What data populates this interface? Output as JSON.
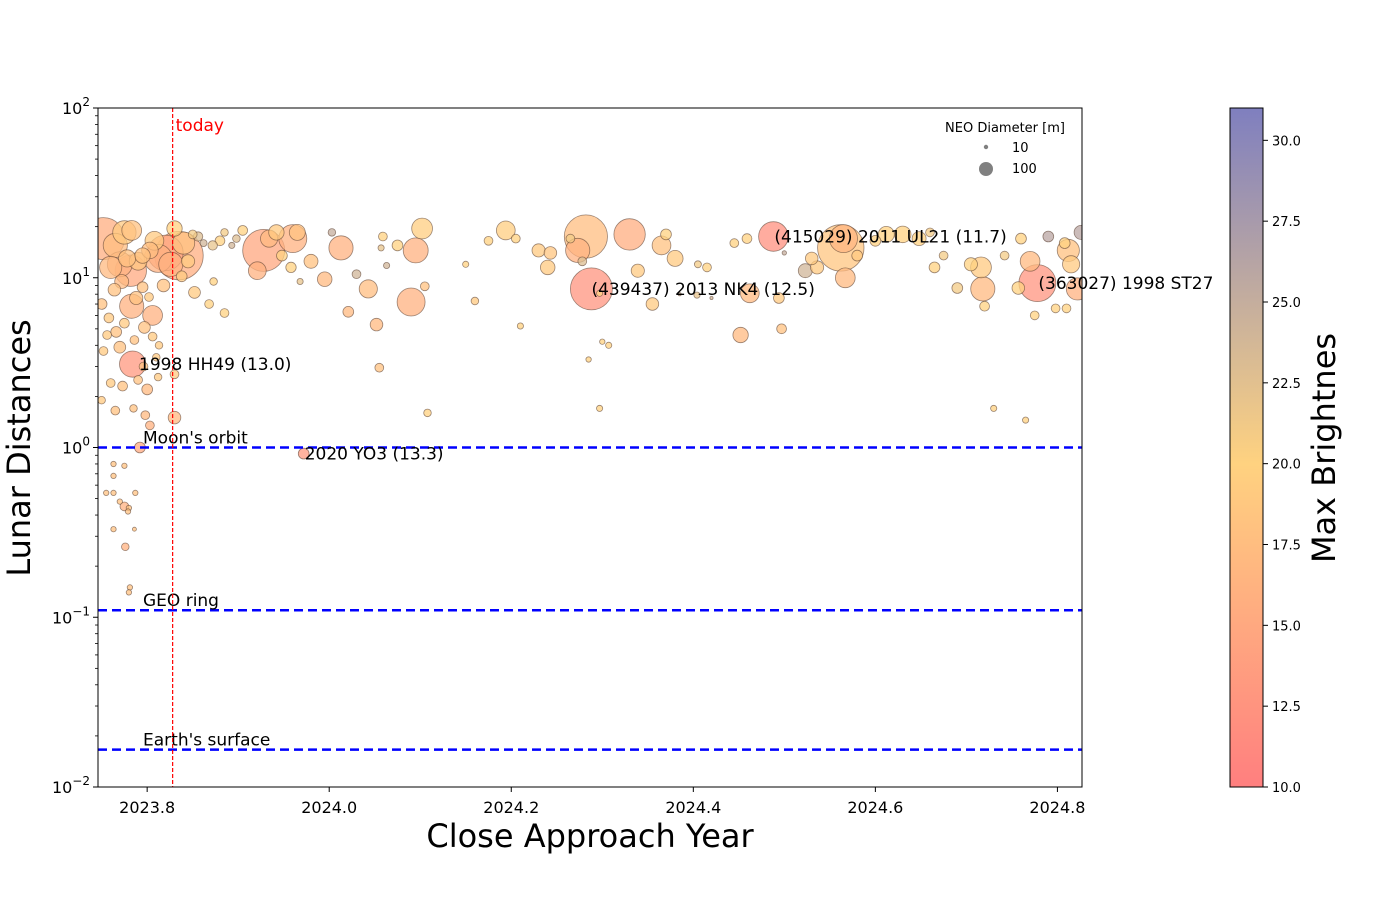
{
  "chart_data": {
    "type": "scatter",
    "xlabel": "Close Approach Year",
    "ylabel": "Lunar Distances",
    "xlim": [
      2023.746,
      2024.827
    ],
    "ylim": [
      0.01,
      100
    ],
    "yscale": "log",
    "x_ticks": [
      2023.8,
      2024.0,
      2024.2,
      2024.4,
      2024.6,
      2024.8
    ],
    "x_tick_labels": [
      "2023.8",
      "2024.0",
      "2024.2",
      "2024.4",
      "2024.6",
      "2024.8"
    ],
    "y_ticks": [
      0.01,
      0.1,
      1,
      10,
      100
    ],
    "y_tick_labels": [
      {
        "base": "10",
        "exp": "−2"
      },
      {
        "base": "10",
        "exp": "−1"
      },
      {
        "base": "10",
        "exp": "0"
      },
      {
        "base": "10",
        "exp": "1"
      },
      {
        "base": "10",
        "exp": "2"
      }
    ],
    "today": {
      "x": 2023.828,
      "label": "today",
      "color": "#ff0000"
    },
    "reference_lines": [
      {
        "y": 1.0,
        "label": "Moon's orbit",
        "color": "#0000ff"
      },
      {
        "y": 0.11,
        "label": "GEO ring",
        "color": "#0000ff"
      },
      {
        "y": 0.0166,
        "label": "Earth's surface",
        "color": "#0000ff"
      }
    ],
    "annotations": [
      {
        "x": 2023.79,
        "y": 3.1,
        "text": "1998 HH49 (13.0)"
      },
      {
        "x": 2023.972,
        "y": 0.92,
        "text": "2020 YO3 (13.3)"
      },
      {
        "x": 2024.287,
        "y": 8.6,
        "text": "(439437) 2013 NK4 (12.5)"
      },
      {
        "x": 2024.488,
        "y": 17.5,
        "text": "(415029) 2011 UL21 (11.7)"
      },
      {
        "x": 2024.778,
        "y": 9.3,
        "text": "(363027) 1998 ST27"
      }
    ],
    "legend": {
      "title": "NEO Diameter [m]",
      "entries": [
        {
          "size": 10,
          "label": "10"
        },
        {
          "size": 100,
          "label": "100"
        }
      ],
      "placement": "top-right"
    },
    "colorbar": {
      "label": "Max Brightnes",
      "range": [
        10.0,
        31.0
      ],
      "ticks": [
        "10.0",
        "12.5",
        "15.0",
        "17.5",
        "20.0",
        "22.5",
        "25.0",
        "27.5",
        "30.0"
      ],
      "tick_values": [
        10.0,
        12.5,
        15.0,
        17.5,
        20.0,
        22.5,
        25.0,
        27.5,
        30.0
      ],
      "colors": [
        "#ff7f7f",
        "#ffd280",
        "#7f7fbf"
      ]
    },
    "point_fields": [
      "year",
      "lunar_distance",
      "diameter_m",
      "max_brightness"
    ],
    "points": [
      [
        2023.752,
        17.0,
        900,
        15.5
      ],
      [
        2023.765,
        15.5,
        300,
        17.5
      ],
      [
        2023.775,
        18.5,
        280,
        19
      ],
      [
        2023.783,
        19.0,
        200,
        18
      ],
      [
        2023.77,
        12.0,
        320,
        16
      ],
      [
        2023.778,
        13.0,
        150,
        18
      ],
      [
        2023.76,
        11.5,
        250,
        17
      ],
      [
        2023.79,
        12.5,
        160,
        18.5
      ],
      [
        2023.782,
        11.0,
        500,
        15
      ],
      [
        2023.795,
        13.5,
        120,
        18
      ],
      [
        2023.803,
        14.5,
        140,
        17.5
      ],
      [
        2023.808,
        16.5,
        180,
        19
      ],
      [
        2023.812,
        13.0,
        400,
        16
      ],
      [
        2023.82,
        14.0,
        650,
        14.5
      ],
      [
        2023.826,
        12.0,
        300,
        16
      ],
      [
        2023.835,
        13.5,
        1200,
        15.5
      ],
      [
        2023.84,
        16.0,
        250,
        18
      ],
      [
        2023.83,
        19.5,
        120,
        20
      ],
      [
        2023.845,
        12.5,
        90,
        19
      ],
      [
        2023.85,
        18.0,
        40,
        21
      ],
      [
        2023.856,
        17.5,
        45,
        23
      ],
      [
        2023.862,
        16.0,
        25,
        24
      ],
      [
        2023.872,
        15.5,
        45,
        22
      ],
      [
        2023.88,
        16.5,
        50,
        20
      ],
      [
        2023.885,
        18.5,
        30,
        21
      ],
      [
        2023.893,
        15.5,
        20,
        24
      ],
      [
        2023.898,
        17.0,
        30,
        23
      ],
      [
        2023.905,
        19.0,
        50,
        20
      ],
      [
        2023.928,
        14.5,
        900,
        14.8
      ],
      [
        2023.934,
        17.0,
        150,
        17
      ],
      [
        2023.942,
        18.5,
        120,
        19
      ],
      [
        2023.921,
        11.0,
        160,
        16
      ],
      [
        2023.96,
        17.0,
        400,
        16
      ],
      [
        2023.965,
        18.5,
        130,
        18
      ],
      [
        2023.948,
        13.5,
        60,
        20
      ],
      [
        2023.958,
        11.5,
        55,
        20
      ],
      [
        2023.98,
        12.5,
        100,
        18
      ],
      [
        2023.968,
        9.5,
        20,
        22
      ],
      [
        2023.995,
        9.8,
        110,
        17
      ],
      [
        2024.013,
        15.0,
        300,
        16
      ],
      [
        2024.03,
        10.5,
        40,
        24
      ],
      [
        2024.003,
        18.5,
        30,
        25
      ],
      [
        2024.021,
        6.3,
        60,
        17
      ],
      [
        2024.043,
        8.6,
        170,
        17.5
      ],
      [
        2024.059,
        17.5,
        40,
        20
      ],
      [
        2024.057,
        15.0,
        20,
        22
      ],
      [
        2024.075,
        15.5,
        60,
        20
      ],
      [
        2024.09,
        7.2,
        400,
        16
      ],
      [
        2024.095,
        14.5,
        320,
        16
      ],
      [
        2024.102,
        19.5,
        220,
        19.5
      ],
      [
        2024.105,
        8.9,
        40,
        18
      ],
      [
        2024.108,
        1.6,
        30,
        20
      ],
      [
        2024.052,
        5.3,
        80,
        17
      ],
      [
        2024.063,
        11.8,
        20,
        24
      ],
      [
        2024.055,
        2.95,
        40,
        18
      ],
      [
        2024.15,
        12.0,
        20,
        20
      ],
      [
        2024.16,
        7.3,
        30,
        19
      ],
      [
        2024.175,
        16.5,
        40,
        20
      ],
      [
        2024.194,
        19.0,
        180,
        19.5
      ],
      [
        2024.205,
        17.0,
        40,
        20
      ],
      [
        2024.21,
        5.2,
        20,
        20
      ],
      [
        2024.23,
        14.5,
        90,
        19
      ],
      [
        2024.243,
        14.0,
        80,
        18.5
      ],
      [
        2024.24,
        11.5,
        110,
        19
      ],
      [
        2024.265,
        17.0,
        40,
        21
      ],
      [
        2024.273,
        14.5,
        300,
        16
      ],
      [
        2024.282,
        17.5,
        950,
        17.5
      ],
      [
        2024.278,
        12.5,
        40,
        23
      ],
      [
        2024.288,
        8.6,
        900,
        12.5
      ],
      [
        2024.297,
        8.1,
        20,
        20
      ],
      [
        2024.3,
        4.2,
        15,
        20
      ],
      [
        2024.307,
        4.0,
        20,
        20
      ],
      [
        2024.297,
        1.7,
        20,
        20
      ],
      [
        2024.285,
        3.3,
        15,
        20
      ],
      [
        2024.33,
        18.0,
        500,
        15.5
      ],
      [
        2024.339,
        11.0,
        90,
        19
      ],
      [
        2024.355,
        7.0,
        80,
        19
      ],
      [
        2024.365,
        15.5,
        180,
        18
      ],
      [
        2024.37,
        18.0,
        60,
        20
      ],
      [
        2024.38,
        13.0,
        130,
        19
      ],
      [
        2024.385,
        8.0,
        5,
        24
      ],
      [
        2024.404,
        7.9,
        20,
        22
      ],
      [
        2024.405,
        12.0,
        25,
        21
      ],
      [
        2024.415,
        11.5,
        40,
        20
      ],
      [
        2024.42,
        7.6,
        5,
        24
      ],
      [
        2024.445,
        16.0,
        40,
        20
      ],
      [
        2024.452,
        4.6,
        120,
        17
      ],
      [
        2024.459,
        17.0,
        50,
        20
      ],
      [
        2024.462,
        8.1,
        180,
        17
      ],
      [
        2024.488,
        17.5,
        450,
        12
      ],
      [
        2024.494,
        7.6,
        60,
        19
      ],
      [
        2024.497,
        5.0,
        50,
        18
      ],
      [
        2024.5,
        14.0,
        10,
        25
      ],
      [
        2024.523,
        11.0,
        100,
        24
      ],
      [
        2024.53,
        13.0,
        80,
        19
      ],
      [
        2024.536,
        11.5,
        90,
        19
      ],
      [
        2024.562,
        15.0,
        1100,
        18.5
      ],
      [
        2024.565,
        17.0,
        400,
        16.5
      ],
      [
        2024.567,
        10.0,
        200,
        17
      ],
      [
        2024.58,
        13.5,
        60,
        19
      ],
      [
        2024.6,
        16.5,
        60,
        20
      ],
      [
        2024.612,
        18.0,
        130,
        20
      ],
      [
        2024.63,
        18.0,
        140,
        20
      ],
      [
        2024.648,
        17.0,
        100,
        20
      ],
      [
        2024.66,
        18.5,
        40,
        21
      ],
      [
        2024.665,
        11.5,
        60,
        20
      ],
      [
        2024.675,
        13.5,
        40,
        21
      ],
      [
        2024.69,
        8.7,
        60,
        21
      ],
      [
        2024.705,
        12.0,
        90,
        20
      ],
      [
        2024.716,
        11.5,
        220,
        19
      ],
      [
        2024.718,
        8.6,
        300,
        17
      ],
      [
        2024.73,
        1.7,
        20,
        20
      ],
      [
        2024.72,
        6.8,
        50,
        20
      ],
      [
        2024.742,
        13.5,
        40,
        21
      ],
      [
        2024.757,
        8.7,
        80,
        20
      ],
      [
        2024.76,
        17.0,
        60,
        20
      ],
      [
        2024.765,
        1.45,
        20,
        20
      ],
      [
        2024.77,
        12.5,
        200,
        17
      ],
      [
        2024.778,
        9.3,
        700,
        12.5
      ],
      [
        2024.79,
        17.5,
        60,
        26
      ],
      [
        2024.798,
        6.6,
        40,
        20
      ],
      [
        2024.812,
        14.5,
        250,
        18
      ],
      [
        2024.815,
        12.0,
        150,
        19
      ],
      [
        2024.822,
        8.6,
        250,
        16
      ],
      [
        2024.826,
        18.5,
        100,
        26
      ],
      [
        2024.808,
        16.0,
        60,
        20
      ],
      [
        2024.775,
        6.0,
        40,
        20
      ],
      [
        2024.81,
        6.6,
        40,
        20
      ],
      [
        2023.75,
        7.0,
        60,
        18
      ],
      [
        2023.758,
        5.8,
        50,
        19
      ],
      [
        2023.764,
        8.5,
        80,
        18
      ],
      [
        2023.772,
        9.5,
        100,
        17
      ],
      [
        2023.783,
        6.8,
        300,
        16
      ],
      [
        2023.788,
        7.6,
        90,
        18
      ],
      [
        2023.795,
        8.8,
        60,
        18
      ],
      [
        2023.802,
        7.7,
        40,
        19
      ],
      [
        2023.756,
        4.6,
        40,
        19
      ],
      [
        2023.766,
        4.8,
        60,
        18
      ],
      [
        2023.775,
        5.4,
        50,
        19
      ],
      [
        2023.786,
        4.3,
        40,
        18
      ],
      [
        2023.797,
        5.1,
        70,
        18
      ],
      [
        2023.806,
        4.5,
        40,
        19
      ],
      [
        2023.813,
        4.0,
        30,
        19
      ],
      [
        2023.752,
        3.7,
        40,
        19
      ],
      [
        2023.77,
        3.9,
        70,
        18
      ],
      [
        2023.784,
        3.1,
        350,
        13.0
      ],
      [
        2023.796,
        3.0,
        40,
        18
      ],
      [
        2023.81,
        3.4,
        30,
        19
      ],
      [
        2023.76,
        2.4,
        40,
        19
      ],
      [
        2023.773,
        2.3,
        50,
        18
      ],
      [
        2023.79,
        2.5,
        40,
        18
      ],
      [
        2023.8,
        2.2,
        60,
        17
      ],
      [
        2023.812,
        2.6,
        30,
        19
      ],
      [
        2023.75,
        1.9,
        30,
        19
      ],
      [
        2023.765,
        1.65,
        40,
        18
      ],
      [
        2023.785,
        1.7,
        30,
        18
      ],
      [
        2023.798,
        1.55,
        40,
        17
      ],
      [
        2023.803,
        1.35,
        40,
        16
      ],
      [
        2023.83,
        1.5,
        80,
        17
      ],
      [
        2023.83,
        2.7,
        40,
        19
      ],
      [
        2023.792,
        1.0,
        60,
        15
      ],
      [
        2023.763,
        0.8,
        15,
        18
      ],
      [
        2023.775,
        0.78,
        15,
        18
      ],
      [
        2023.763,
        0.68,
        15,
        18
      ],
      [
        2023.755,
        0.54,
        15,
        18
      ],
      [
        2023.763,
        0.54,
        15,
        18
      ],
      [
        2023.787,
        0.54,
        15,
        18
      ],
      [
        2023.77,
        0.48,
        15,
        18
      ],
      [
        2023.775,
        0.45,
        40,
        16
      ],
      [
        2023.78,
        0.44,
        15,
        18
      ],
      [
        2023.779,
        0.42,
        15,
        18
      ],
      [
        2023.763,
        0.33,
        15,
        18
      ],
      [
        2023.786,
        0.33,
        8,
        18
      ],
      [
        2023.776,
        0.26,
        30,
        16
      ],
      [
        2023.781,
        0.15,
        15,
        18
      ],
      [
        2023.78,
        0.14,
        15,
        18
      ],
      [
        2023.972,
        0.92,
        60,
        13.3
      ],
      [
        2023.806,
        6.0,
        200,
        16.0
      ],
      [
        2023.818,
        9.0,
        80,
        18
      ],
      [
        2023.838,
        10.2,
        60,
        19
      ],
      [
        2023.852,
        8.2,
        70,
        19
      ],
      [
        2023.868,
        7.0,
        40,
        20
      ],
      [
        2023.873,
        9.5,
        30,
        20
      ],
      [
        2023.885,
        6.2,
        40,
        20
      ]
    ]
  }
}
